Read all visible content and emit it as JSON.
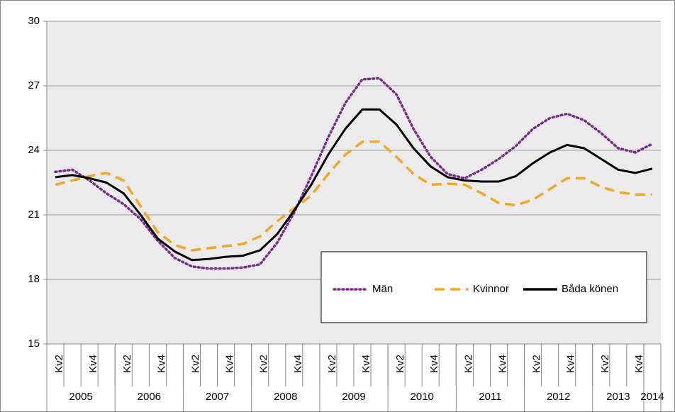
{
  "chart_data": {
    "type": "line",
    "categories": [
      "Kv2",
      null,
      "Kv4",
      null,
      "Kv2",
      null,
      "Kv4",
      null,
      "Kv2",
      null,
      "Kv4",
      null,
      "Kv2",
      null,
      "Kv4",
      null,
      "Kv2",
      null,
      "Kv4",
      null,
      "Kv2",
      null,
      "Kv4",
      null,
      "Kv2",
      null,
      "Kv4",
      null,
      "Kv2",
      null,
      "Kv4",
      null,
      "Kv2",
      null,
      "Kv4",
      null
    ],
    "year_labels": [
      "2005",
      null,
      null,
      null,
      "2006",
      null,
      null,
      null,
      "2007",
      null,
      null,
      null,
      "2008",
      null,
      null,
      null,
      "2009",
      null,
      null,
      null,
      "2010",
      null,
      null,
      null,
      "2011",
      null,
      null,
      null,
      "2012",
      null,
      null,
      null,
      "2013",
      null,
      null,
      "2014"
    ],
    "series": [
      {
        "name": "Män",
        "color": "#7b2d8b",
        "dash": "dotted",
        "values": [
          23.0,
          23.1,
          22.6,
          22.0,
          21.5,
          20.8,
          19.8,
          19.0,
          18.6,
          18.5,
          18.5,
          18.55,
          18.7,
          19.7,
          21.1,
          22.8,
          24.6,
          26.2,
          27.3,
          27.35,
          26.6,
          25.0,
          23.7,
          22.9,
          22.7,
          23.1,
          23.6,
          24.2,
          25.0,
          25.5,
          25.7,
          25.4,
          24.8,
          24.1,
          23.9,
          24.3
        ]
      },
      {
        "name": "Kvinnor",
        "color": "#f5a623",
        "dash": "dashed",
        "values": [
          22.4,
          22.6,
          22.8,
          22.95,
          22.6,
          21.4,
          20.2,
          19.6,
          19.35,
          19.45,
          19.55,
          19.65,
          20.0,
          20.7,
          21.3,
          21.9,
          22.9,
          23.8,
          24.4,
          24.4,
          23.7,
          22.9,
          22.4,
          22.45,
          22.4,
          22.0,
          21.55,
          21.45,
          21.7,
          22.2,
          22.7,
          22.7,
          22.3,
          22.05,
          21.95,
          21.95
        ]
      },
      {
        "name": "Båda könen",
        "color": "#000000",
        "dash": "solid",
        "values": [
          22.75,
          22.85,
          22.7,
          22.5,
          22.0,
          21.0,
          19.9,
          19.3,
          18.9,
          18.95,
          19.05,
          19.1,
          19.35,
          20.1,
          21.2,
          22.4,
          23.8,
          25.0,
          25.9,
          25.9,
          25.2,
          24.1,
          23.25,
          22.75,
          22.6,
          22.55,
          22.55,
          22.8,
          23.4,
          23.9,
          24.25,
          24.1,
          23.6,
          23.1,
          22.95,
          23.15
        ]
      }
    ],
    "ylim": [
      15,
      30
    ],
    "yticks": [
      15,
      18,
      21,
      24,
      27,
      30
    ],
    "grid": true,
    "legend": "inside-right"
  }
}
